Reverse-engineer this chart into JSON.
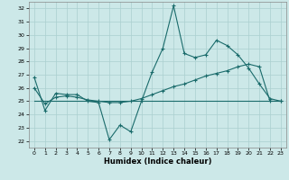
{
  "xlabel": "Humidex (Indice chaleur)",
  "background_color": "#cce8e8",
  "grid_color": "#aacfcf",
  "line_color": "#1a6b6b",
  "ylim": [
    21.5,
    32.5
  ],
  "xlim": [
    -0.5,
    23.5
  ],
  "yticks": [
    22,
    23,
    24,
    25,
    26,
    27,
    28,
    29,
    30,
    31,
    32
  ],
  "xticks": [
    0,
    1,
    2,
    3,
    4,
    5,
    6,
    7,
    8,
    9,
    10,
    11,
    12,
    13,
    14,
    15,
    16,
    17,
    18,
    19,
    20,
    21,
    22,
    23
  ],
  "line1_x": [
    0,
    1,
    2,
    3,
    4,
    5,
    6,
    7,
    8,
    9,
    10,
    11,
    12,
    13,
    14,
    15,
    16,
    17,
    18,
    19,
    20,
    21,
    22,
    23
  ],
  "line1_y": [
    26.8,
    24.3,
    25.6,
    25.5,
    25.5,
    25.0,
    24.9,
    22.1,
    23.2,
    22.7,
    25.0,
    27.2,
    29.0,
    32.2,
    28.6,
    28.3,
    28.5,
    29.6,
    29.2,
    28.5,
    27.5,
    26.3,
    25.2,
    25.0
  ],
  "line2_x": [
    0,
    1,
    2,
    3,
    4,
    5,
    6,
    7,
    8,
    9,
    10,
    11,
    12,
    13,
    14,
    15,
    16,
    17,
    18,
    19,
    20,
    21,
    22,
    23
  ],
  "line2_y": [
    26.0,
    24.8,
    25.3,
    25.4,
    25.3,
    25.1,
    25.0,
    24.9,
    24.9,
    25.0,
    25.2,
    25.5,
    25.8,
    26.1,
    26.3,
    26.6,
    26.9,
    27.1,
    27.3,
    27.6,
    27.8,
    27.6,
    25.0,
    25.0
  ],
  "line3_x": [
    0,
    23
  ],
  "line3_y": [
    25.0,
    25.0
  ]
}
